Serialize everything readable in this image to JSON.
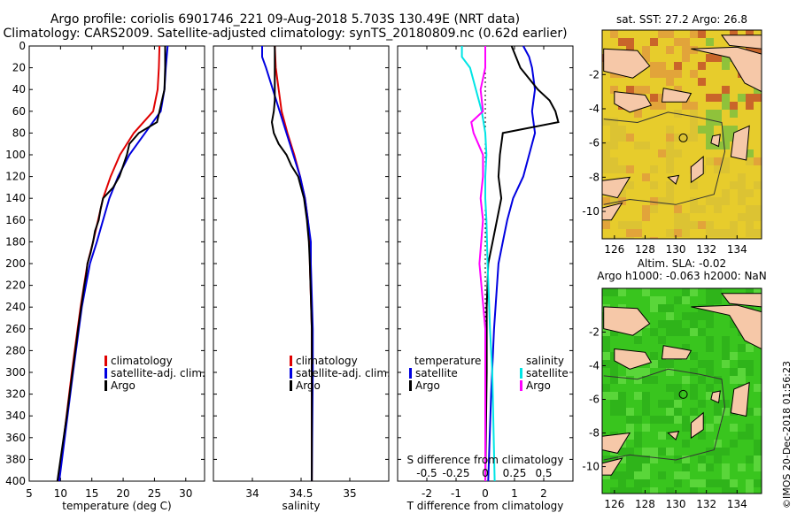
{
  "colors": {
    "red": "#e00000",
    "blue": "#0000e0",
    "black": "#000000",
    "magenta": "#ff00ff",
    "cyan": "#00e5e5",
    "land": "#f6c8a8",
    "sst_bg": "#e7cc2c",
    "sla_bg": "#39c51e"
  },
  "title": {
    "line1": "Argo profile: coriolis 6901746_221 09-Aug-2018 5.703S 130.49E (NRT data)",
    "line2": "Climatology: CARS2009. Satellite-adjusted climatology: synTS_20180809.nc (0.62d earlier)"
  },
  "credit": "©IMOS 20-Dec-2018 01:56:23",
  "chart_data": [
    {
      "type": "line",
      "id": "temperature",
      "xlabel": "temperature (deg C)",
      "ylabel": "",
      "xlim": [
        5,
        33
      ],
      "ylim": [
        400,
        0
      ],
      "xticks": [
        "5",
        "10",
        "15",
        "20",
        "25",
        "30"
      ],
      "yticks": [
        "0",
        "20",
        "40",
        "60",
        "80",
        "100",
        "120",
        "140",
        "160",
        "180",
        "200",
        "220",
        "240",
        "260",
        "280",
        "300",
        "320",
        "340",
        "360",
        "380",
        "400"
      ],
      "legend": [
        "climatology",
        "satellite-adj. clim.",
        "Argo"
      ],
      "series": [
        {
          "name": "climatology",
          "color": "red",
          "depth": [
            0,
            20,
            40,
            60,
            80,
            100,
            120,
            140,
            160,
            180,
            200,
            240,
            300,
            400
          ],
          "values": [
            25.8,
            25.7,
            25.5,
            24.8,
            21.7,
            19.5,
            18.0,
            16.8,
            16.0,
            15.2,
            14.3,
            13.2,
            11.8,
            9.7
          ]
        },
        {
          "name": "satellite-adj. clim.",
          "color": "blue",
          "depth": [
            0,
            20,
            40,
            60,
            80,
            100,
            120,
            140,
            160,
            180,
            200,
            240,
            300,
            400
          ],
          "values": [
            27.1,
            26.8,
            26.6,
            26.0,
            23.5,
            21.0,
            19.2,
            17.8,
            16.8,
            15.8,
            14.7,
            13.4,
            12.0,
            9.8
          ]
        },
        {
          "name": "Argo",
          "color": "black",
          "depth": [
            0,
            20,
            40,
            50,
            60,
            70,
            80,
            90,
            100,
            110,
            120,
            130,
            140,
            150,
            160,
            170,
            180,
            190,
            200,
            210,
            220,
            240,
            260,
            300,
            340,
            400
          ],
          "values": [
            26.7,
            26.7,
            26.6,
            26.2,
            25.8,
            25.4,
            22.5,
            21.0,
            20.6,
            20.0,
            19.4,
            18.4,
            16.8,
            16.4,
            16.1,
            15.5,
            15.2,
            14.8,
            14.3,
            14.1,
            13.8,
            13.3,
            12.8,
            11.9,
            11.0,
            9.5
          ]
        }
      ]
    },
    {
      "type": "line",
      "id": "salinity",
      "xlabel": "salinity",
      "ylabel": "",
      "xlim": [
        33.6,
        35.4
      ],
      "ylim": [
        400,
        0
      ],
      "xticks": [
        "34",
        "34.5",
        "35"
      ],
      "legend": [
        "climatology",
        "satellite-adj. clim.",
        "Argo"
      ],
      "series": [
        {
          "name": "climatology",
          "color": "red",
          "depth": [
            0,
            20,
            40,
            60,
            80,
            100,
            120,
            140,
            160,
            180,
            200,
            260,
            300,
            400
          ],
          "values": [
            34.23,
            34.24,
            34.27,
            34.3,
            34.36,
            34.43,
            34.49,
            34.54,
            34.57,
            34.59,
            34.59,
            34.61,
            34.61,
            34.61
          ]
        },
        {
          "name": "satellite-adj. clim.",
          "color": "blue",
          "depth": [
            0,
            10,
            20,
            40,
            60,
            80,
            100,
            120,
            140,
            160,
            180,
            200,
            260,
            300,
            400
          ],
          "values": [
            34.1,
            34.1,
            34.14,
            34.21,
            34.28,
            34.35,
            34.42,
            34.49,
            34.54,
            34.57,
            34.6,
            34.6,
            34.62,
            34.62,
            34.61
          ]
        },
        {
          "name": "Argo",
          "color": "black",
          "depth": [
            0,
            20,
            40,
            50,
            60,
            70,
            80,
            90,
            100,
            110,
            120,
            140,
            160,
            180,
            200,
            260,
            300,
            400
          ],
          "values": [
            34.23,
            34.23,
            34.23,
            34.23,
            34.22,
            34.2,
            34.22,
            34.27,
            34.35,
            34.4,
            34.47,
            34.53,
            34.56,
            34.58,
            34.59,
            34.61,
            34.61,
            34.61
          ]
        }
      ]
    },
    {
      "type": "line",
      "id": "difference",
      "xlabel": "T difference from climatology",
      "xlabel2": "S difference from climatology",
      "xlim": [
        -3,
        3
      ],
      "ylim": [
        400,
        0
      ],
      "xticks": [
        "-2",
        "-1",
        "0",
        "1",
        "2"
      ],
      "xticks_top": [
        "-0.5",
        "-0.25",
        "0",
        "0.25",
        "0.5"
      ],
      "legend_left_title": "temperature",
      "legend_right_title": "salinity",
      "legend_left": [
        "satellite",
        "Argo"
      ],
      "legend_right": [
        "satellite",
        "Argo"
      ],
      "series": [
        {
          "name": "T satellite",
          "color": "blue",
          "depth": [
            0,
            10,
            20,
            40,
            60,
            80,
            100,
            120,
            140,
            160,
            180,
            200,
            260,
            320,
            400
          ],
          "values": [
            1.3,
            1.5,
            1.6,
            1.7,
            1.6,
            1.7,
            1.5,
            1.3,
            0.95,
            0.75,
            0.6,
            0.45,
            0.3,
            0.2,
            0.1
          ]
        },
        {
          "name": "T Argo",
          "color": "black",
          "depth": [
            0,
            20,
            40,
            50,
            60,
            70,
            80,
            100,
            120,
            140,
            160,
            180,
            200,
            240,
            300,
            400
          ],
          "values": [
            0.9,
            1.2,
            1.8,
            2.2,
            2.4,
            2.5,
            0.6,
            0.5,
            0.45,
            0.55,
            0.4,
            0.25,
            0.1,
            0.05,
            0.05,
            0
          ]
        },
        {
          "name": "S satellite",
          "color": "cyan",
          "depth": [
            0,
            10,
            20,
            40,
            60,
            80,
            100,
            120,
            140,
            160,
            200,
            260,
            300,
            400
          ],
          "values": [
            -0.2,
            -0.2,
            -0.13,
            -0.08,
            -0.03,
            0.0,
            0.01,
            0.0,
            0.0,
            0.01,
            0.02,
            0.04,
            0.06,
            0.08
          ]
        },
        {
          "name": "S Argo",
          "color": "magenta",
          "depth": [
            0,
            20,
            40,
            60,
            70,
            80,
            100,
            120,
            140,
            160,
            200,
            260,
            300,
            400
          ],
          "values": [
            0.0,
            0.0,
            -0.04,
            -0.02,
            -0.12,
            -0.1,
            -0.02,
            -0.02,
            -0.04,
            -0.02,
            -0.05,
            0.0,
            0.0,
            0.0
          ]
        }
      ]
    },
    {
      "type": "heatmap",
      "id": "sst_map",
      "title": "sat. SST: 27.2 Argo: 26.8",
      "xlim": [
        125.2,
        135.6
      ],
      "ylim": [
        -11.6,
        0.6
      ],
      "xticks": [
        "126",
        "128",
        "130",
        "132",
        "134"
      ],
      "yticks": [
        "-2",
        "-4",
        "-6",
        "-8",
        "-10"
      ],
      "marker": {
        "lon": 130.49,
        "lat": -5.703
      }
    },
    {
      "type": "heatmap",
      "id": "sla_map",
      "title": "Altim. SLA: -0.02",
      "subtitle": "Argo h1000: -0.063 h2000: NaN",
      "xlim": [
        125.2,
        135.6
      ],
      "ylim": [
        -11.6,
        0.6
      ],
      "xticks": [
        "126",
        "128",
        "130",
        "132",
        "134"
      ],
      "yticks": [
        "-2",
        "-4",
        "-6",
        "-8",
        "-10"
      ],
      "marker": {
        "lon": 130.49,
        "lat": -5.703
      }
    }
  ]
}
